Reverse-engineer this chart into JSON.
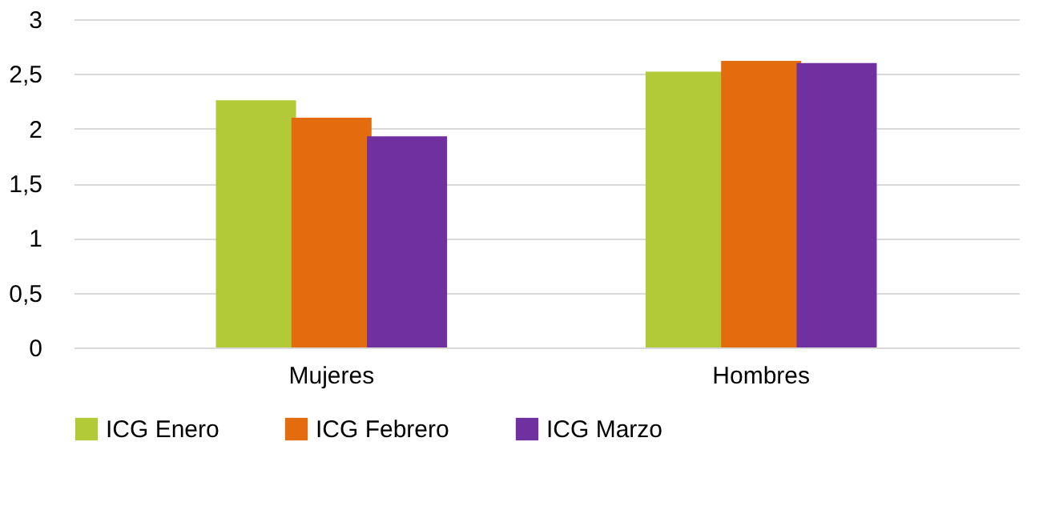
{
  "chart_data": {
    "type": "bar",
    "categories": [
      "Mujeres",
      "Hombres"
    ],
    "series": [
      {
        "name": "ICG Enero",
        "color": "#b2c938",
        "values": [
          2.26,
          2.52
        ]
      },
      {
        "name": "ICG Febrero",
        "color": "#e36c0f",
        "values": [
          2.1,
          2.62
        ]
      },
      {
        "name": "ICG Marzo",
        "color": "#7030a0",
        "values": [
          1.93,
          2.6
        ]
      }
    ],
    "ylim": [
      0,
      3
    ],
    "yticks": [
      0,
      {
        "value": 0.5,
        "label": "0,5"
      },
      1,
      {
        "value": 1.5,
        "label": "1,5"
      },
      2,
      {
        "value": 2.5,
        "label": "2,5"
      },
      3
    ],
    "grid": "y",
    "legend": "bottom"
  }
}
